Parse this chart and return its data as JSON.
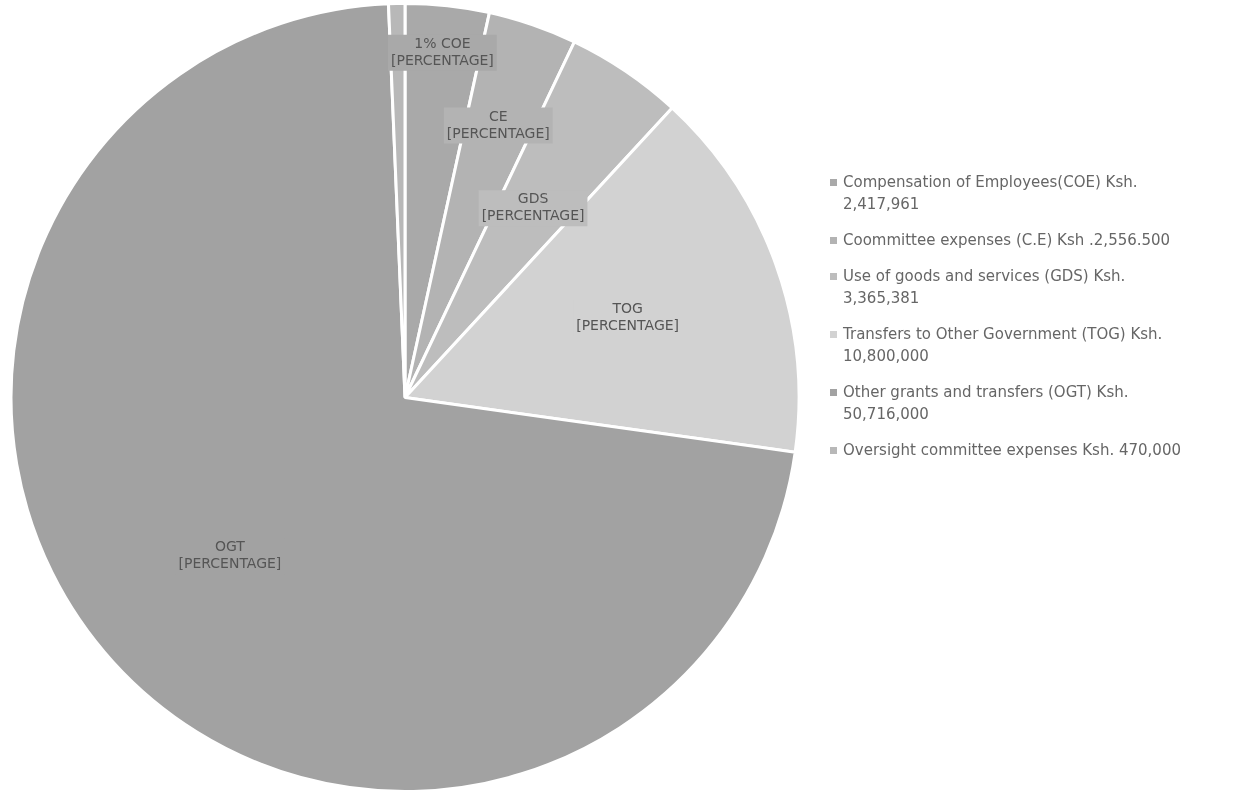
{
  "chart_data": {
    "type": "pie",
    "categories": [
      "Compensation of Employees(COE) Ksh. 2,417,961",
      "Coommittee expenses (C.E) Ksh .2,556.500",
      "Use of goods and services (GDS)   Ksh. 3,365,381",
      "Transfers to Other Government (TOG) Ksh. 10,800,000",
      "Other grants and transfers (OGT) Ksh. 50,716,000",
      "Oversight committee expenses Ksh. 470,000"
    ],
    "values": [
      2417961,
      2556500,
      3365381,
      10800000,
      50716000,
      470000
    ],
    "colors": [
      "#a9a9a9",
      "#b3b3b3",
      "#bdbdbd",
      "#d2d2d2",
      "#a2a2a2",
      "#b8b8b8"
    ],
    "annotations": [
      {
        "text": "1% COE [PERCENTAGE]",
        "x": "Compensation of Employees(COE) Ksh. 2,417,961"
      },
      {
        "text": "CE [PERCENTAGE]",
        "x": "Coommittee expenses (C.E) Ksh .2,556.500"
      },
      {
        "text": "GDS [PERCENTAGE]",
        "x": "Use of goods and services (GDS)   Ksh. 3,365,381"
      },
      {
        "text": "TOG [PERCENTAGE]",
        "x": "Transfers to Other Government (TOG) Ksh. 10,800,000"
      },
      {
        "text": "OGT [PERCENTAGE]",
        "x": "Other grants and transfers (OGT) Ksh. 50,716,000"
      }
    ],
    "legend": "right"
  }
}
